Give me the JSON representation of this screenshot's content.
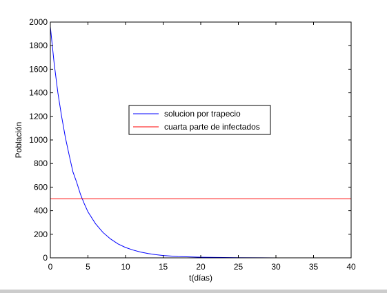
{
  "chart_data": {
    "type": "line",
    "title": "",
    "xlabel": "t(días)",
    "ylabel": "Población",
    "xlim": [
      0,
      40
    ],
    "ylim": [
      0,
      2000
    ],
    "xticks": [
      0,
      5,
      10,
      15,
      20,
      25,
      30,
      35,
      40
    ],
    "yticks": [
      0,
      200,
      400,
      600,
      800,
      1000,
      1200,
      1400,
      1600,
      1800,
      2000
    ],
    "grid": false,
    "legend_position": "center",
    "series": [
      {
        "name": "solucion por trapecio",
        "color": "#0000ff",
        "x": [
          0,
          0.5,
          1,
          1.5,
          2,
          2.5,
          3,
          3.5,
          4,
          4.5,
          5,
          6,
          7,
          8,
          9,
          10,
          11,
          12,
          13,
          14,
          15,
          17,
          20,
          25,
          30,
          35,
          40
        ],
        "y": [
          1960,
          1650,
          1400,
          1200,
          1020,
          870,
          730,
          640,
          540,
          460,
          390,
          290,
          215,
          160,
          118,
          88,
          66,
          49,
          36,
          27,
          20,
          11,
          5,
          1,
          0,
          0,
          0
        ]
      },
      {
        "name": "cuarta parte de infectados",
        "color": "#ff0000",
        "x": [
          0,
          40
        ],
        "y": [
          500,
          500
        ]
      }
    ]
  }
}
